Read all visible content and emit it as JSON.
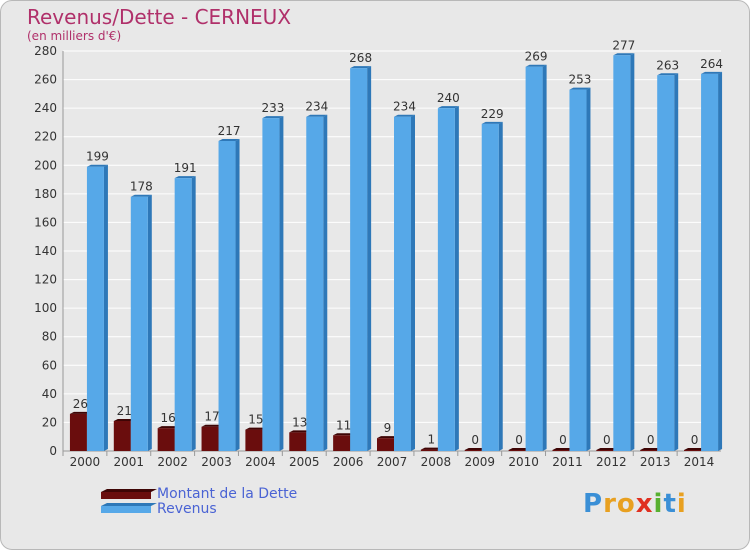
{
  "header": {
    "title": "Revenus/Dette - CERNEUX",
    "subtitle": "(en milliers d'€)"
  },
  "logo": {
    "letters": [
      "P",
      "r",
      "o",
      "x",
      "i",
      "t",
      "i"
    ],
    "colors": [
      "#3a8fd6",
      "#e8a020",
      "#e8a020",
      "#e03020",
      "#58b030",
      "#3a8fd6",
      "#e8a020"
    ]
  },
  "colors": {
    "dette_front": "#6a0d0d",
    "dette_side": "#3e0505",
    "revenus_front": "#56a8e8",
    "revenus_side": "#2e78b8",
    "grid": "#ffffff",
    "axis_text": "#333333",
    "plot_bg": "#e8e8e8"
  },
  "chart_data": {
    "type": "bar",
    "categories": [
      "2000",
      "2001",
      "2002",
      "2003",
      "2004",
      "2005",
      "2006",
      "2007",
      "2008",
      "2009",
      "2010",
      "2011",
      "2012",
      "2013",
      "2014"
    ],
    "series": [
      {
        "name": "Montant de la Dette",
        "values": [
          26,
          21,
          16,
          17,
          15,
          13,
          11,
          9,
          1,
          0,
          0,
          0,
          0,
          0,
          0
        ]
      },
      {
        "name": "Revenus",
        "values": [
          199,
          178,
          191,
          217,
          233,
          234,
          268,
          234,
          240,
          229,
          269,
          253,
          277,
          263,
          264
        ]
      }
    ],
    "ylim": [
      0,
      280
    ],
    "yticks": [
      0,
      20,
      40,
      60,
      80,
      100,
      120,
      140,
      160,
      180,
      200,
      220,
      240,
      260,
      280
    ],
    "grid": true,
    "legend": "bottom-left"
  }
}
